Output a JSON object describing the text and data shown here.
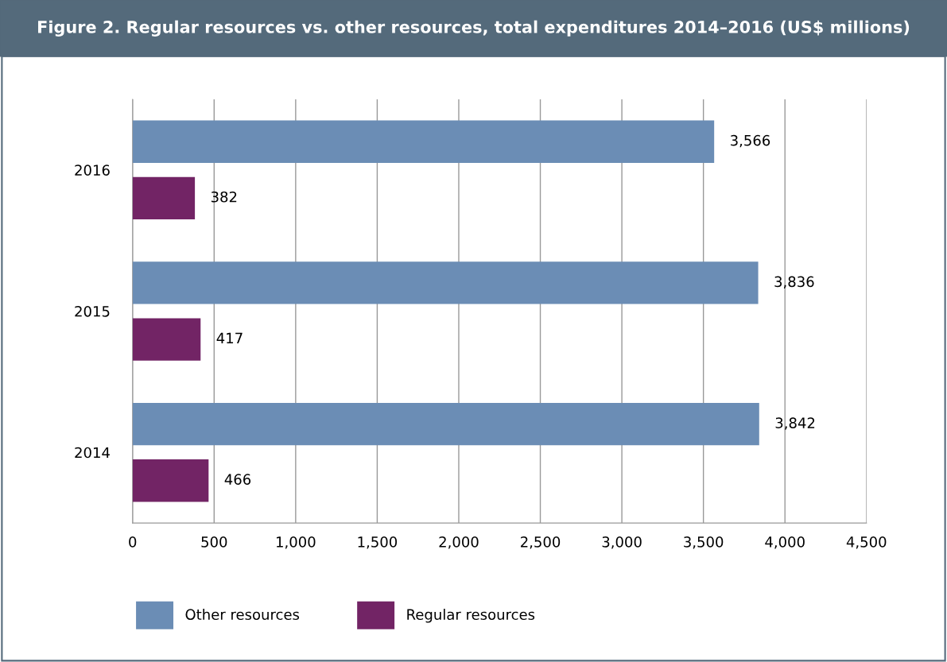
{
  "chart_data": {
    "type": "bar",
    "orientation": "horizontal",
    "title": "Figure 2. Regular resources vs. other resources, total expenditures 2014–2016 (US$ millions)",
    "categories": [
      "2016",
      "2015",
      "2014"
    ],
    "series": [
      {
        "name": "Other resources",
        "color": "#6b8db5",
        "values": [
          3566,
          3836,
          3842
        ],
        "value_labels": [
          "3,566",
          "3,836",
          "3,842"
        ]
      },
      {
        "name": "Regular resources",
        "color": "#722465",
        "values": [
          382,
          417,
          466
        ],
        "value_labels": [
          "382",
          "417",
          "466"
        ]
      }
    ],
    "xlim": [
      0,
      4500
    ],
    "xticks": [
      0,
      500,
      {
        "value": 1000,
        "label": "1,000"
      },
      {
        "value": 1500,
        "label": "1,500"
      },
      {
        "value": 2000,
        "label": "2,000"
      },
      {
        "value": 2500,
        "label": "2,500"
      },
      {
        "value": 3000,
        "label": "3,000"
      },
      {
        "value": 3500,
        "label": "3,500"
      },
      {
        "value": 4000,
        "label": "4,000"
      },
      {
        "value": 4500,
        "label": "4,500"
      }
    ],
    "grid": "x",
    "legend": "bottom left"
  }
}
